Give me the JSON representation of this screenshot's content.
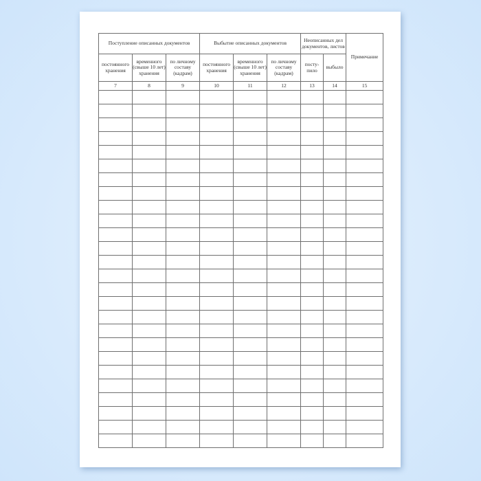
{
  "header": {
    "group_receipt": "Поступление описанных документов",
    "group_disposal": "Выбытие описанных документов",
    "group_undescribed": "Неописанных дел документов, листов",
    "note": "Примечание",
    "sub": {
      "permanent": "постоянного хранения",
      "temporary": "временного (свыше 10 лет) хранения",
      "personnel": "по личному составу (кадрам)",
      "received": "посту-пило",
      "disposed": "выбыло"
    }
  },
  "column_numbers": [
    "7",
    "8",
    "9",
    "10",
    "11",
    "12",
    "13",
    "14",
    "15"
  ],
  "empty_rows": 26
}
